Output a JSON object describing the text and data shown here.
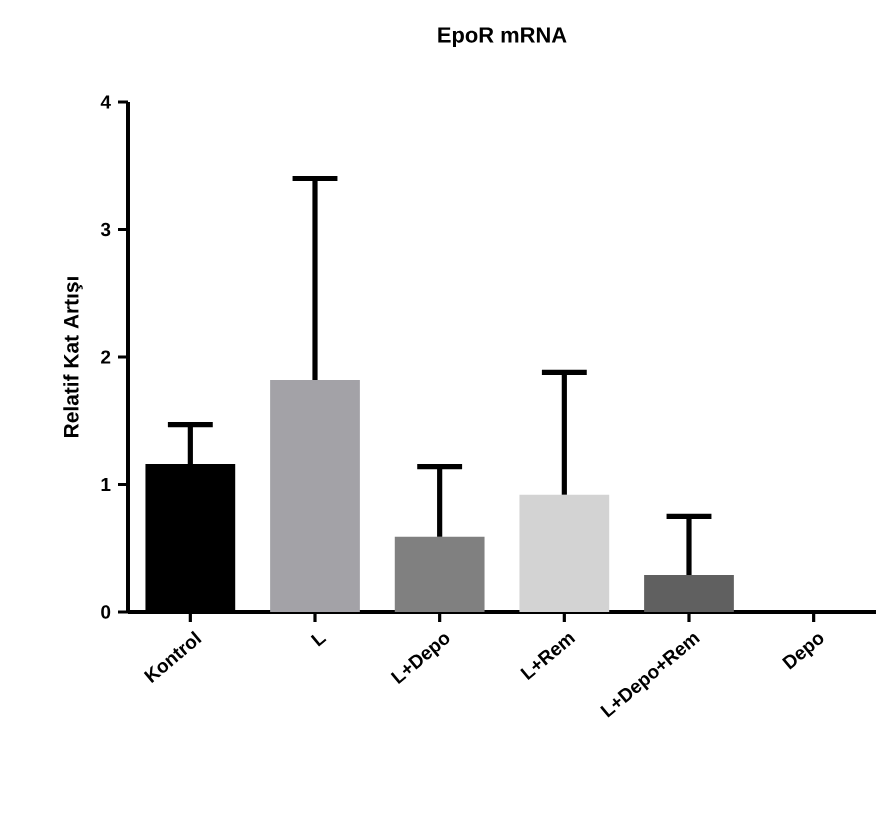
{
  "chart_data": {
    "type": "bar",
    "title": "EpoR mRNA",
    "ylabel": "Relatif Kat Artışı",
    "categories": [
      "Kontrol",
      "L",
      "L+Depo",
      "L+Rem",
      "L+Depo+Rem",
      "Depo"
    ],
    "values": [
      1.16,
      1.82,
      0.59,
      0.92,
      0.29,
      0
    ],
    "colors": [
      "#000000",
      "#a3a2a7",
      "#808080",
      "#d3d3d3",
      "#606060",
      "#404040"
    ],
    "errors": [
      [
        1.16,
        1.47
      ],
      [
        1.82,
        3.4
      ],
      [
        0.59,
        1.14
      ],
      [
        0.92,
        1.88
      ],
      [
        0.29,
        0.75
      ],
      null
    ],
    "ylim": [
      0,
      4
    ],
    "yticks": [
      0,
      1,
      2,
      3,
      4
    ]
  }
}
